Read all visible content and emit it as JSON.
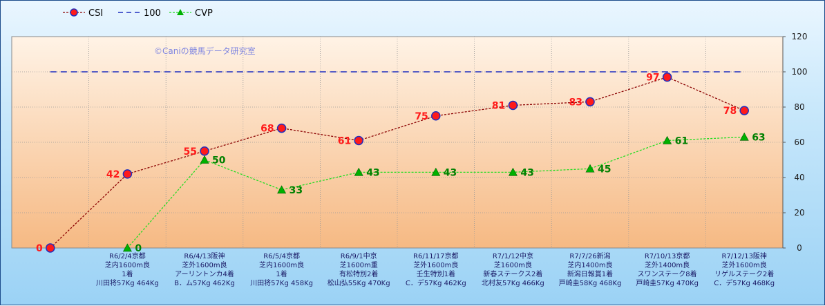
{
  "legend": {
    "csi": "CSI",
    "ref": "100",
    "cvp": "CVP"
  },
  "watermark": "©Caniの競馬データ研究室",
  "colors": {
    "csi_line": "#8b0000",
    "csi_marker_fill": "#ff1a1a",
    "csi_marker_edge": "#1f2fbf",
    "csi_label": "#ff1a1a",
    "ref_line": "#1f2fbf",
    "cvp_line": "#22dd22",
    "cvp_marker": "#00b000",
    "cvp_label": "#008000",
    "plot_top": "#fff3e6",
    "plot_bottom": "#f6b983"
  },
  "chart_data": {
    "type": "line",
    "y_axis_position": "right",
    "ylim": [
      0,
      120
    ],
    "yticks": [
      0,
      20,
      40,
      60,
      80,
      100,
      120
    ],
    "grid": true,
    "legend_position": "top-left",
    "categories": [
      {
        "lines": [
          ""
        ]
      },
      {
        "lines": [
          "R6/2/4京都",
          "芝内1600m良",
          "1着",
          "川田将57Kg 464Kg"
        ]
      },
      {
        "lines": [
          "R6/4/13阪神",
          "芝外1600m良",
          "アーリントンカ4着",
          "B．ム57Kg 462Kg"
        ]
      },
      {
        "lines": [
          "R6/5/4京都",
          "芝内1600m良",
          "1着",
          "川田将57Kg 458Kg"
        ]
      },
      {
        "lines": [
          "R6/9/1中京",
          "芝1600m重",
          "有松特別2着",
          "松山弘55Kg 470Kg"
        ]
      },
      {
        "lines": [
          "R6/11/17京都",
          "芝外1600m良",
          "壬生特別1着",
          "C．デ57Kg 462Kg"
        ]
      },
      {
        "lines": [
          "R7/1/12中京",
          "芝1600m良",
          "新春ステークス2着",
          "北村友57Kg 466Kg"
        ]
      },
      {
        "lines": [
          "R7/7/26新潟",
          "芝内1400m良",
          "新潟日報賞1着",
          "戸崎圭58Kg 468Kg"
        ]
      },
      {
        "lines": [
          "R7/10/13京都",
          "芝外1400m良",
          "スワンステーク8着",
          "戸崎圭57Kg 470Kg"
        ]
      },
      {
        "lines": [
          "R7/12/13阪神",
          "芝外1600m良",
          "リゲルステーク2着",
          "C．デ57Kg 468Kg"
        ]
      }
    ],
    "series": [
      {
        "name": "CSI",
        "values": [
          0,
          42,
          55,
          68,
          61,
          75,
          81,
          83,
          97,
          78
        ]
      },
      {
        "name": "100",
        "values": [
          100,
          100,
          100,
          100,
          100,
          100,
          100,
          100,
          100,
          100
        ]
      },
      {
        "name": "CVP",
        "values": [
          null,
          0,
          50,
          33,
          43,
          43,
          43,
          45,
          61,
          63
        ]
      }
    ]
  }
}
